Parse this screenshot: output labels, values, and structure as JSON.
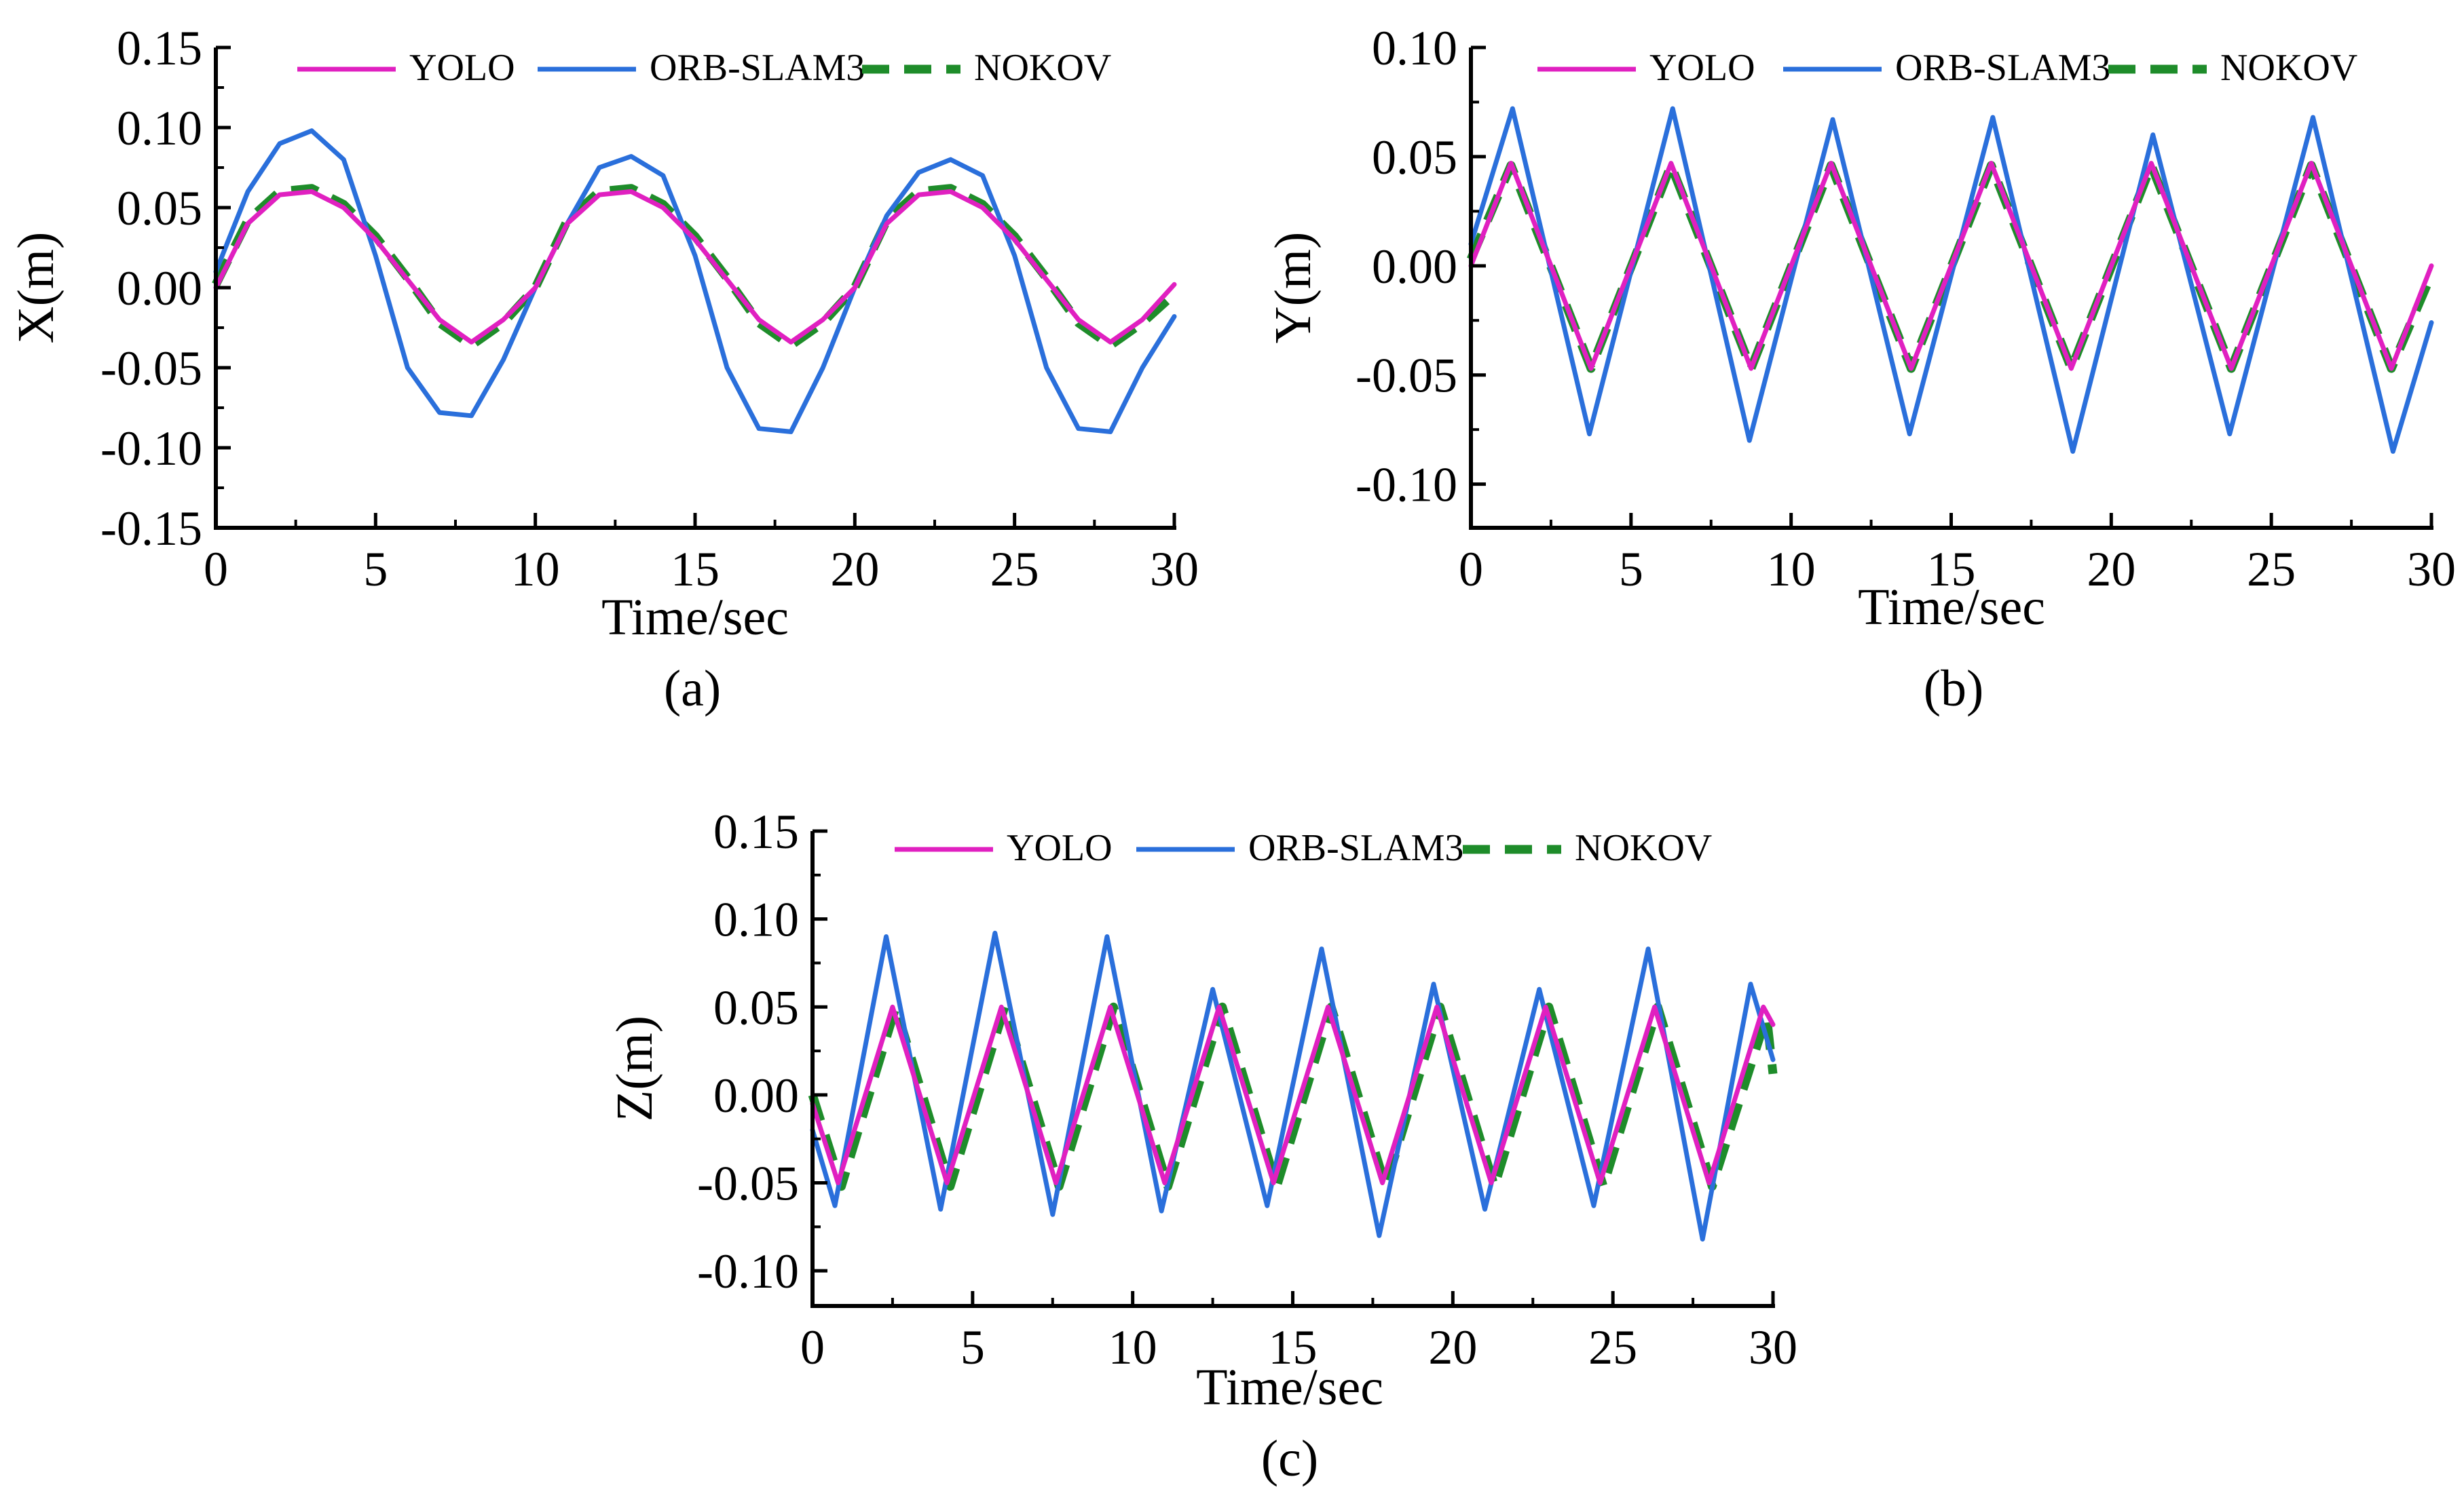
{
  "figure": {
    "captions": [
      "(a)",
      "(b)",
      "(c)"
    ]
  },
  "chart_data": [
    {
      "type": "line",
      "panel": "a",
      "caption": "(a)",
      "xlabel": "Time/sec",
      "ylabel": "X(m)",
      "xlim": [
        0,
        30
      ],
      "ylim": [
        -0.15,
        0.15
      ],
      "xticks": [
        0,
        5,
        10,
        15,
        20,
        25,
        30
      ],
      "xtick_labels": [
        "0",
        "5",
        "10",
        "15",
        "20",
        "25",
        "30"
      ],
      "yticks": [
        -0.15,
        -0.1,
        -0.05,
        0.0,
        0.05,
        0.1,
        0.15
      ],
      "ytick_labels": [
        "-0.15",
        "-0.10",
        "-0.05",
        "0.00",
        "0.05",
        "0.10",
        "0.15"
      ],
      "legend_position": "top",
      "series": [
        {
          "name": "YOLO",
          "color": "#e020c0",
          "style": "solid",
          "x": [
            0,
            1,
            2,
            3,
            4,
            5,
            6,
            7,
            8,
            9,
            10,
            11,
            12,
            13,
            14,
            15,
            16,
            17,
            18,
            19,
            20,
            21,
            22,
            23,
            24,
            25,
            26,
            27,
            28,
            29,
            30
          ],
          "y": [
            0.0,
            0.04,
            0.058,
            0.06,
            0.05,
            0.03,
            0.005,
            -0.02,
            -0.034,
            -0.02,
            0.0,
            0.04,
            0.058,
            0.06,
            0.05,
            0.03,
            0.005,
            -0.02,
            -0.034,
            -0.02,
            0.0,
            0.04,
            0.058,
            0.06,
            0.05,
            0.03,
            0.005,
            -0.02,
            -0.034,
            -0.02,
            0.002
          ]
        },
        {
          "name": "ORB-SLAM3",
          "color": "#2a6fdb",
          "style": "solid",
          "x": [
            0,
            1,
            2,
            3,
            4,
            5,
            6,
            7,
            8,
            9,
            10,
            11,
            12,
            13,
            14,
            15,
            16,
            17,
            18,
            19,
            20,
            21,
            22,
            23,
            24,
            25,
            26,
            27,
            28,
            29,
            30
          ],
          "y": [
            0.01,
            0.06,
            0.09,
            0.098,
            0.08,
            0.02,
            -0.05,
            -0.078,
            -0.08,
            -0.045,
            0.0,
            0.04,
            0.075,
            0.082,
            0.07,
            0.02,
            -0.05,
            -0.088,
            -0.09,
            -0.05,
            0.0,
            0.045,
            0.072,
            0.08,
            0.07,
            0.02,
            -0.05,
            -0.088,
            -0.09,
            -0.05,
            -0.018
          ]
        },
        {
          "name": "NOKOV",
          "color": "#1e8c2a",
          "style": "dashed",
          "x": [
            0,
            1,
            2,
            3,
            4,
            5,
            6,
            7,
            8,
            9,
            10,
            11,
            12,
            13,
            14,
            15,
            16,
            17,
            18,
            19,
            20,
            21,
            22,
            23,
            24,
            25,
            26,
            27,
            28,
            29,
            30
          ],
          "y": [
            0.002,
            0.042,
            0.06,
            0.062,
            0.052,
            0.032,
            0.006,
            -0.022,
            -0.036,
            -0.022,
            0.0,
            0.042,
            0.06,
            0.062,
            0.052,
            0.032,
            0.006,
            -0.022,
            -0.036,
            -0.022,
            0.0,
            0.042,
            0.06,
            0.062,
            0.052,
            0.032,
            0.006,
            -0.022,
            -0.036,
            -0.022,
            -0.004
          ]
        }
      ]
    },
    {
      "type": "line",
      "panel": "b",
      "caption": "(b)",
      "xlabel": "Time/sec",
      "ylabel": "Y(m)",
      "xlim": [
        0,
        30
      ],
      "ylim": [
        -0.12,
        0.1
      ],
      "xticks": [
        0,
        5,
        10,
        15,
        20,
        25,
        30
      ],
      "xtick_labels": [
        "0",
        "5",
        "10",
        "15",
        "20",
        "25",
        "30"
      ],
      "yticks": [
        -0.1,
        -0.05,
        0.0,
        0.05,
        0.1
      ],
      "ytick_labels": [
        "-0.10",
        "-0.05",
        "0.00",
        "0.05",
        "0.10"
      ],
      "legend_position": "top",
      "series": [
        {
          "name": "YOLO",
          "color": "#e020c0",
          "style": "solid",
          "x": [
            0,
            1.25,
            3.75,
            6.25,
            8.75,
            11.25,
            13.75,
            16.25,
            18.75,
            21.25,
            23.75,
            26.25,
            28.75,
            30
          ],
          "y": [
            0.0,
            0.047,
            -0.047,
            0.047,
            -0.047,
            0.047,
            -0.047,
            0.047,
            -0.047,
            0.047,
            -0.047,
            0.047,
            -0.047,
            0.0
          ]
        },
        {
          "name": "ORB-SLAM3",
          "color": "#2a6fdb",
          "style": "solid",
          "x": [
            0,
            1.3,
            3.7,
            6.3,
            8.7,
            11.3,
            13.7,
            16.3,
            18.8,
            21.3,
            23.7,
            26.3,
            28.8,
            30
          ],
          "y": [
            0.01,
            0.072,
            -0.077,
            0.072,
            -0.08,
            0.067,
            -0.077,
            0.068,
            -0.085,
            0.06,
            -0.077,
            0.068,
            -0.085,
            -0.026
          ]
        },
        {
          "name": "NOKOV",
          "color": "#1e8c2a",
          "style": "dashed",
          "x": [
            0,
            1.25,
            3.75,
            6.25,
            8.75,
            11.25,
            13.75,
            16.25,
            18.75,
            21.25,
            23.75,
            26.25,
            28.75,
            30
          ],
          "y": [
            0.003,
            0.046,
            -0.047,
            0.046,
            -0.047,
            0.046,
            -0.047,
            0.046,
            -0.047,
            0.046,
            -0.047,
            0.046,
            -0.047,
            -0.004
          ]
        }
      ]
    },
    {
      "type": "line",
      "panel": "c",
      "caption": "(c)",
      "xlabel": "Time/sec",
      "ylabel": "Z(m)",
      "xlim": [
        0,
        30
      ],
      "ylim": [
        -0.12,
        0.15
      ],
      "xticks": [
        0,
        5,
        10,
        15,
        20,
        25,
        30
      ],
      "xtick_labels": [
        "0",
        "5",
        "10",
        "15",
        "20",
        "25",
        "30"
      ],
      "yticks": [
        -0.1,
        -0.05,
        0.0,
        0.05,
        0.1,
        0.15
      ],
      "ytick_labels": [
        "-0.10",
        "-0.05",
        "0.00",
        "0.05",
        "0.10",
        "0.15"
      ],
      "legend_position": "top",
      "series": [
        {
          "name": "YOLO",
          "color": "#e020c0",
          "style": "solid",
          "x": [
            0,
            0.8,
            2.5,
            4.2,
            5.9,
            7.6,
            9.3,
            11.0,
            12.7,
            14.4,
            16.1,
            17.8,
            19.5,
            21.2,
            22.9,
            24.6,
            26.3,
            28.0,
            29.7,
            30
          ],
          "y": [
            -0.005,
            -0.05,
            0.05,
            -0.05,
            0.05,
            -0.05,
            0.05,
            -0.05,
            0.05,
            -0.05,
            0.05,
            -0.05,
            0.05,
            -0.05,
            0.05,
            -0.05,
            0.05,
            -0.05,
            0.05,
            0.04
          ]
        },
        {
          "name": "ORB-SLAM3",
          "color": "#2a6fdb",
          "style": "solid",
          "x": [
            0,
            0.7,
            2.3,
            4.0,
            5.7,
            7.5,
            9.2,
            10.9,
            12.5,
            14.2,
            15.9,
            17.7,
            19.4,
            21.0,
            22.7,
            24.4,
            26.1,
            27.8,
            29.3,
            30
          ],
          "y": [
            -0.02,
            -0.063,
            0.09,
            -0.065,
            0.092,
            -0.068,
            0.09,
            -0.066,
            0.06,
            -0.063,
            0.083,
            -0.08,
            0.063,
            -0.065,
            0.06,
            -0.063,
            0.083,
            -0.082,
            0.063,
            0.02
          ]
        },
        {
          "name": "NOKOV",
          "color": "#1e8c2a",
          "style": "dashed",
          "x": [
            0,
            0.9,
            2.6,
            4.3,
            6.0,
            7.7,
            9.4,
            11.1,
            12.8,
            14.5,
            16.2,
            17.9,
            19.6,
            21.3,
            23.0,
            24.7,
            26.4,
            28.1,
            29.8,
            30
          ],
          "y": [
            0.0,
            -0.052,
            0.05,
            -0.052,
            0.05,
            -0.052,
            0.05,
            -0.052,
            0.05,
            -0.052,
            0.05,
            -0.052,
            0.05,
            -0.052,
            0.05,
            -0.052,
            0.05,
            -0.052,
            0.045,
            0.012
          ]
        }
      ]
    }
  ]
}
